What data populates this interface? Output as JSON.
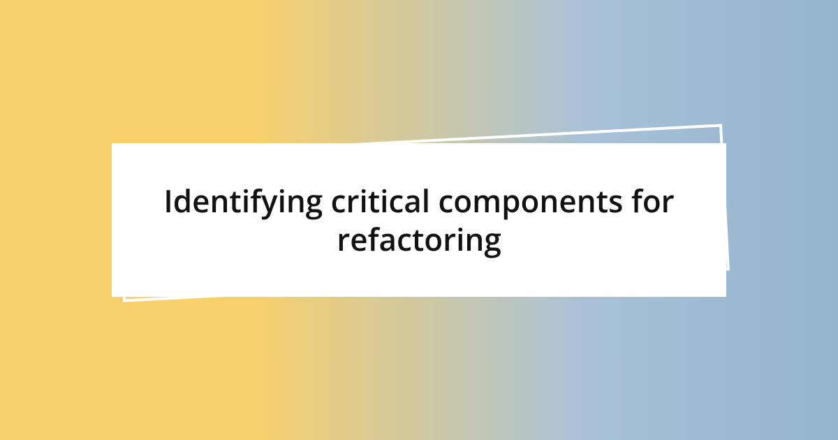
{
  "card": {
    "title": "Identifying critical components for refactoring",
    "title_fontsize": 44,
    "title_fontweight": 600,
    "title_color": "#111111",
    "background_color": "#ffffff"
  },
  "background": {
    "gradient_left": "#f8d06b",
    "gradient_right": "#95b3cd"
  },
  "frame": {
    "border_color": "#ffffff",
    "border_width": 4,
    "rotation_deg": -3
  }
}
